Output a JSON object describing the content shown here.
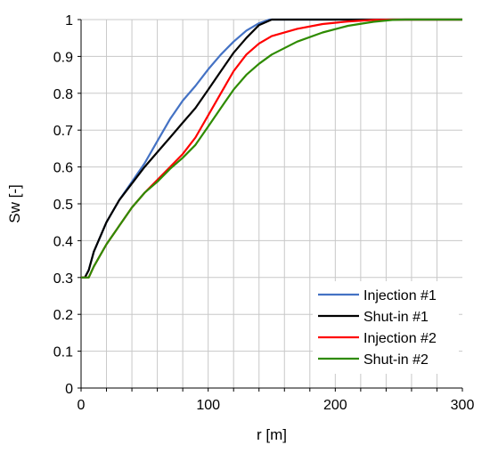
{
  "chart_data": {
    "type": "line",
    "xlabel": "r [m]",
    "ylabel": "Sw [-]",
    "xlim": [
      0,
      300
    ],
    "ylim": [
      0,
      1
    ],
    "x_ticks": [
      "0",
      "100",
      "200",
      "300"
    ],
    "y_ticks": [
      "0",
      "0.1",
      "0.2",
      "0.3",
      "0.4",
      "0.5",
      "0.6",
      "0.7",
      "0.8",
      "0.9",
      "1"
    ],
    "grid": true,
    "legend_position": "bottom-right",
    "series": [
      {
        "name": "Injection #1",
        "color": "#4472C4",
        "points": [
          [
            0,
            0.3
          ],
          [
            3,
            0.3
          ],
          [
            6,
            0.32
          ],
          [
            10,
            0.37
          ],
          [
            20,
            0.45
          ],
          [
            30,
            0.51
          ],
          [
            40,
            0.56
          ],
          [
            50,
            0.61
          ],
          [
            60,
            0.67
          ],
          [
            70,
            0.73
          ],
          [
            80,
            0.78
          ],
          [
            90,
            0.82
          ],
          [
            100,
            0.865
          ],
          [
            110,
            0.905
          ],
          [
            120,
            0.94
          ],
          [
            130,
            0.97
          ],
          [
            140,
            0.99
          ],
          [
            148,
            1.0
          ],
          [
            300,
            1.0
          ]
        ]
      },
      {
        "name": "Shut-in #1",
        "color": "#000000",
        "points": [
          [
            0,
            0.3
          ],
          [
            3,
            0.3
          ],
          [
            6,
            0.32
          ],
          [
            10,
            0.37
          ],
          [
            20,
            0.45
          ],
          [
            30,
            0.51
          ],
          [
            40,
            0.555
          ],
          [
            50,
            0.6
          ],
          [
            60,
            0.64
          ],
          [
            70,
            0.68
          ],
          [
            80,
            0.72
          ],
          [
            90,
            0.76
          ],
          [
            100,
            0.81
          ],
          [
            110,
            0.86
          ],
          [
            120,
            0.91
          ],
          [
            130,
            0.95
          ],
          [
            140,
            0.985
          ],
          [
            150,
            1.0
          ],
          [
            300,
            1.0
          ]
        ]
      },
      {
        "name": "Injection #2",
        "color": "#FF0000",
        "points": [
          [
            0,
            0.3
          ],
          [
            3,
            0.3
          ],
          [
            6,
            0.3
          ],
          [
            10,
            0.33
          ],
          [
            20,
            0.39
          ],
          [
            30,
            0.44
          ],
          [
            40,
            0.49
          ],
          [
            50,
            0.53
          ],
          [
            60,
            0.565
          ],
          [
            70,
            0.6
          ],
          [
            80,
            0.635
          ],
          [
            90,
            0.68
          ],
          [
            100,
            0.74
          ],
          [
            110,
            0.8
          ],
          [
            120,
            0.86
          ],
          [
            130,
            0.905
          ],
          [
            140,
            0.935
          ],
          [
            150,
            0.955
          ],
          [
            170,
            0.975
          ],
          [
            190,
            0.988
          ],
          [
            210,
            0.995
          ],
          [
            230,
            0.999
          ],
          [
            245,
            1.0
          ],
          [
            300,
            1.0
          ]
        ]
      },
      {
        "name": "Shut-in #2",
        "color": "#2E8B00",
        "points": [
          [
            0,
            0.3
          ],
          [
            3,
            0.3
          ],
          [
            6,
            0.3
          ],
          [
            10,
            0.33
          ],
          [
            20,
            0.39
          ],
          [
            30,
            0.44
          ],
          [
            40,
            0.49
          ],
          [
            50,
            0.53
          ],
          [
            60,
            0.56
          ],
          [
            70,
            0.595
          ],
          [
            80,
            0.625
          ],
          [
            90,
            0.66
          ],
          [
            100,
            0.71
          ],
          [
            110,
            0.76
          ],
          [
            120,
            0.81
          ],
          [
            130,
            0.85
          ],
          [
            140,
            0.88
          ],
          [
            150,
            0.905
          ],
          [
            170,
            0.94
          ],
          [
            190,
            0.965
          ],
          [
            210,
            0.983
          ],
          [
            230,
            0.994
          ],
          [
            245,
            0.999
          ],
          [
            255,
            1.0
          ],
          [
            300,
            1.0
          ]
        ]
      }
    ]
  }
}
